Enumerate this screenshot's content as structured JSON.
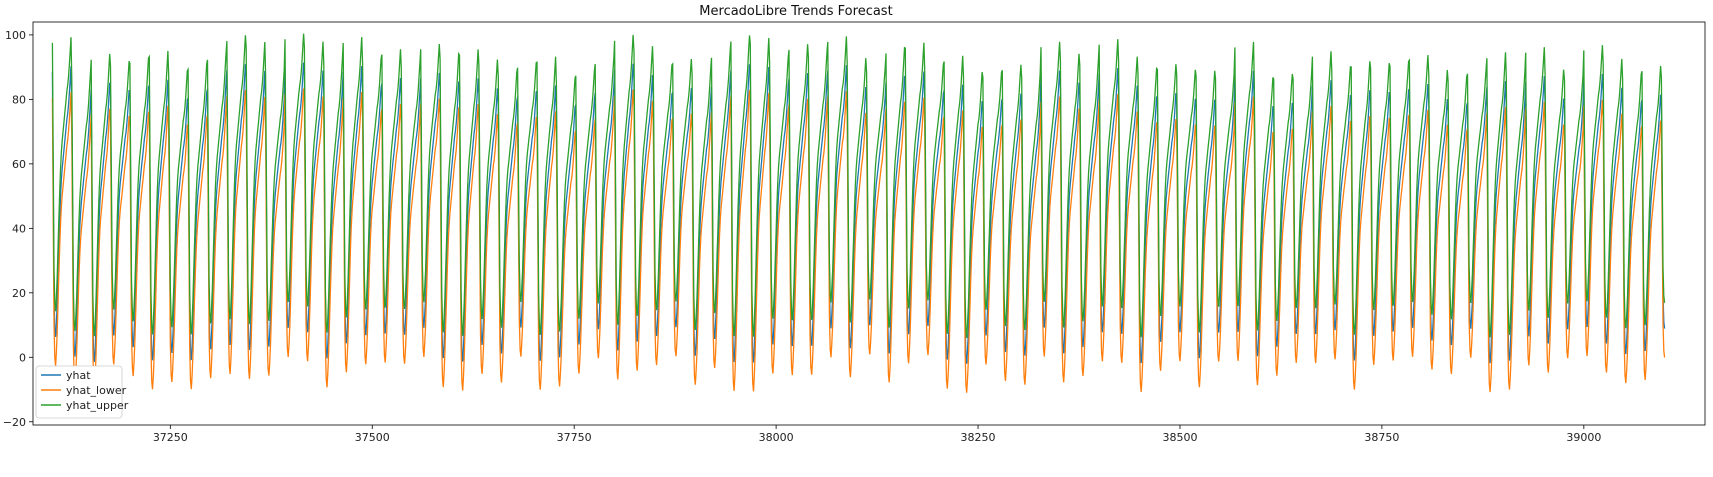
{
  "chart_data": {
    "type": "line",
    "title": "MercadoLibre Trends Forecast",
    "xlabel": "",
    "ylabel": "",
    "xlim": [
      37080,
      39150
    ],
    "ylim": [
      -21,
      104
    ],
    "xticks": [
      37250,
      37500,
      37750,
      38000,
      38250,
      38500,
      38750,
      39000
    ],
    "xtick_labels": [
      "37250",
      "37500",
      "37750",
      "38000",
      "38250",
      "38500",
      "38750",
      "39000"
    ],
    "yticks": [
      -20,
      0,
      20,
      40,
      60,
      80,
      100
    ],
    "ytick_labels": [
      "−20",
      "0",
      "20",
      "40",
      "60",
      "80",
      "100"
    ],
    "grid": false,
    "legend_position": "lower-left",
    "pattern": {
      "x_start": 37104,
      "x_end": 39100,
      "period_hours": 24,
      "description_values": {
        "yhat": {
          "peak": 87,
          "trough": 4,
          "shoulder": 55
        },
        "yhat_lower": {
          "peak": 79,
          "trough": -5,
          "shoulder": 46
        },
        "yhat_upper": {
          "peak": 96,
          "trough": 12,
          "shoulder": 64
        }
      }
    },
    "series": [
      {
        "name": "yhat",
        "color": "#1f77b4"
      },
      {
        "name": "yhat_lower",
        "color": "#ff7f0e"
      },
      {
        "name": "yhat_upper",
        "color": "#2ca02c"
      }
    ]
  }
}
